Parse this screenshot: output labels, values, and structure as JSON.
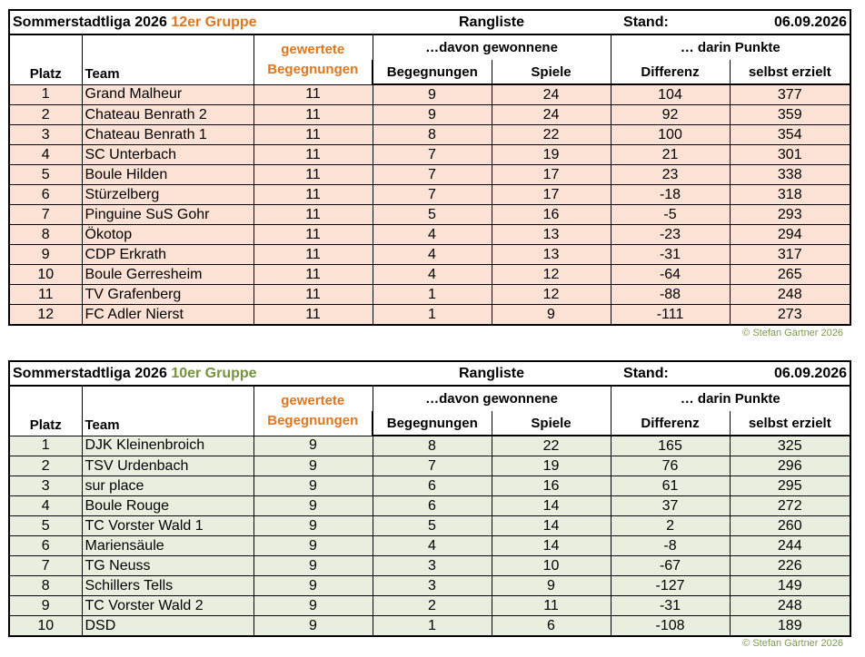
{
  "header_labels": {
    "liga": "Sommerstadtliga 2026",
    "rangliste": "Rangliste",
    "stand": "Stand:",
    "date": "06.09.2026",
    "platz": "Platz",
    "team": "Team",
    "gewertete1": "gewertete",
    "gewertete2": "Begegnungen",
    "davon": "…davon gewonnene",
    "begegnungen": "Begegnungen",
    "spiele": "Spiele",
    "darin": "… darin Punkte",
    "differenz": "Differenz",
    "selbst": "selbst erzielt"
  },
  "copyright": "© Stefan Gärtner 2026",
  "colors": {
    "accent_orange": "#e0761e",
    "accent_green": "#77933c",
    "row_peach": "#fbe2d4",
    "row_green": "#e9efdf"
  },
  "table12": {
    "group": "12er Gruppe",
    "rows": [
      {
        "platz": "1",
        "team": "Grand Malheur",
        "gew": "11",
        "beg": "9",
        "spiele": "24",
        "diff": "104",
        "erz": "377"
      },
      {
        "platz": "2",
        "team": "Chateau Benrath 2",
        "gew": "11",
        "beg": "9",
        "spiele": "24",
        "diff": "92",
        "erz": "359"
      },
      {
        "platz": "3",
        "team": "Chateau Benrath 1",
        "gew": "11",
        "beg": "8",
        "spiele": "22",
        "diff": "100",
        "erz": "354"
      },
      {
        "platz": "4",
        "team": "SC Unterbach",
        "gew": "11",
        "beg": "7",
        "spiele": "19",
        "diff": "21",
        "erz": "301"
      },
      {
        "platz": "5",
        "team": "Boule Hilden",
        "gew": "11",
        "beg": "7",
        "spiele": "17",
        "diff": "23",
        "erz": "338"
      },
      {
        "platz": "6",
        "team": "Stürzelberg",
        "gew": "11",
        "beg": "7",
        "spiele": "17",
        "diff": "-18",
        "erz": "318"
      },
      {
        "platz": "7",
        "team": "Pinguine SuS Gohr",
        "gew": "11",
        "beg": "5",
        "spiele": "16",
        "diff": "-5",
        "erz": "293"
      },
      {
        "platz": "8",
        "team": "Ökotop",
        "gew": "11",
        "beg": "4",
        "spiele": "13",
        "diff": "-23",
        "erz": "294"
      },
      {
        "platz": "9",
        "team": "CDP Erkrath",
        "gew": "11",
        "beg": "4",
        "spiele": "13",
        "diff": "-31",
        "erz": "317"
      },
      {
        "platz": "10",
        "team": "Boule Gerresheim",
        "gew": "11",
        "beg": "4",
        "spiele": "12",
        "diff": "-64",
        "erz": "265"
      },
      {
        "platz": "11",
        "team": "TV Grafenberg",
        "gew": "11",
        "beg": "1",
        "spiele": "12",
        "diff": "-88",
        "erz": "248"
      },
      {
        "platz": "12",
        "team": "FC Adler Nierst",
        "gew": "11",
        "beg": "1",
        "spiele": "9",
        "diff": "-111",
        "erz": "273"
      }
    ]
  },
  "table10": {
    "group": "10er Gruppe",
    "rows": [
      {
        "platz": "1",
        "team": "DJK Kleinenbroich",
        "gew": "9",
        "beg": "8",
        "spiele": "22",
        "diff": "165",
        "erz": "325"
      },
      {
        "platz": "2",
        "team": "TSV Urdenbach",
        "gew": "9",
        "beg": "7",
        "spiele": "19",
        "diff": "76",
        "erz": "296"
      },
      {
        "platz": "3",
        "team": "sur place",
        "gew": "9",
        "beg": "6",
        "spiele": "16",
        "diff": "61",
        "erz": "295"
      },
      {
        "platz": "4",
        "team": "Boule Rouge",
        "gew": "9",
        "beg": "6",
        "spiele": "14",
        "diff": "37",
        "erz": "272"
      },
      {
        "platz": "5",
        "team": "TC Vorster Wald 1",
        "gew": "9",
        "beg": "5",
        "spiele": "14",
        "diff": "2",
        "erz": "260"
      },
      {
        "platz": "6",
        "team": "Mariensäule",
        "gew": "9",
        "beg": "4",
        "spiele": "14",
        "diff": "-8",
        "erz": "244"
      },
      {
        "platz": "7",
        "team": "TG Neuss",
        "gew": "9",
        "beg": "3",
        "spiele": "10",
        "diff": "-67",
        "erz": "226"
      },
      {
        "platz": "8",
        "team": "Schillers Tells",
        "gew": "9",
        "beg": "3",
        "spiele": "9",
        "diff": "-127",
        "erz": "149"
      },
      {
        "platz": "9",
        "team": "TC Vorster Wald 2",
        "gew": "9",
        "beg": "2",
        "spiele": "11",
        "diff": "-31",
        "erz": "248"
      },
      {
        "platz": "10",
        "team": "DSD",
        "gew": "9",
        "beg": "1",
        "spiele": "6",
        "diff": "-108",
        "erz": "189"
      }
    ]
  }
}
